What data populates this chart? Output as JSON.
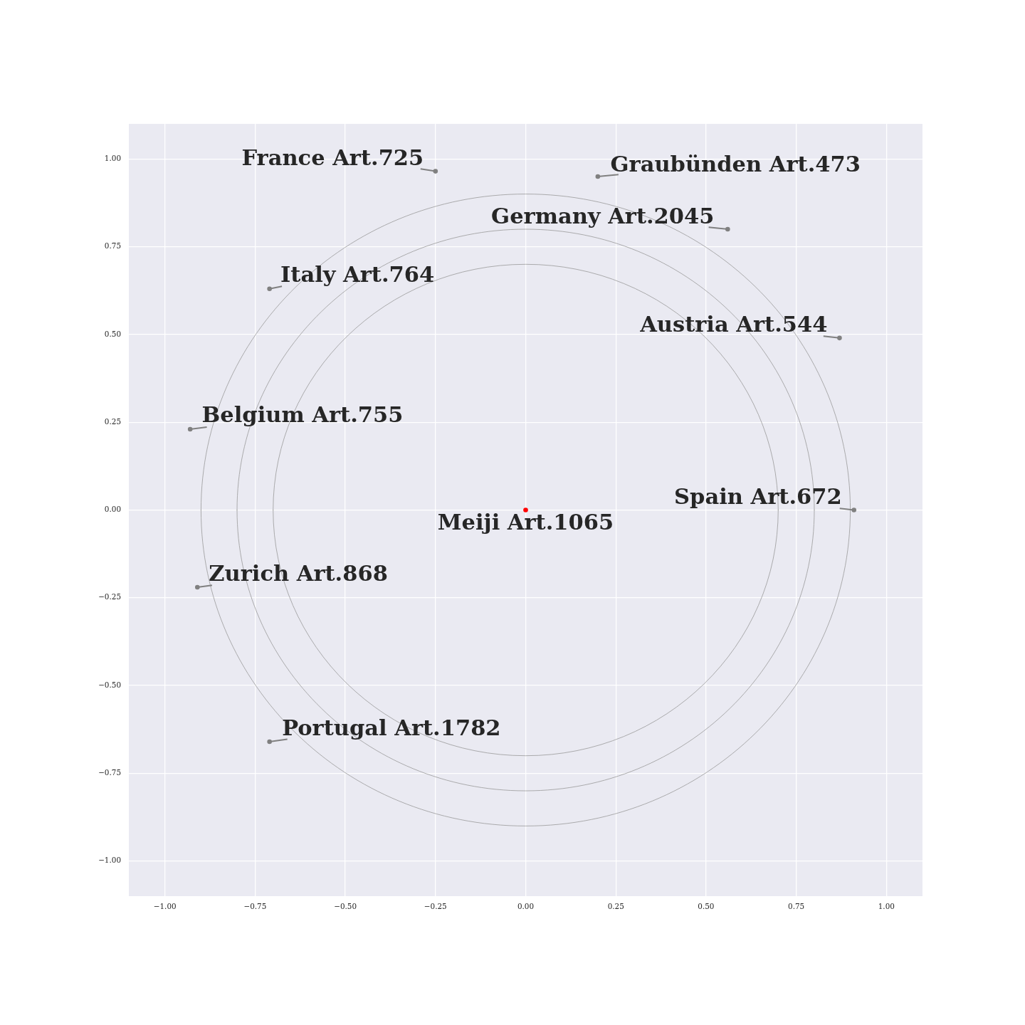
{
  "chart_data": {
    "type": "scatter",
    "xlim": [
      -1.1,
      1.1
    ],
    "ylim": [
      -1.1,
      1.1
    ],
    "xticks": [
      {
        "value": -1,
        "label": "−1.00"
      },
      {
        "value": -0.75,
        "label": "−0.75"
      },
      {
        "value": -0.5,
        "label": "−0.50"
      },
      {
        "value": -0.25,
        "label": "−0.25"
      },
      {
        "value": 0,
        "label": "0.00"
      },
      {
        "value": 0.25,
        "label": "0.25"
      },
      {
        "value": 0.5,
        "label": "0.50"
      },
      {
        "value": 0.75,
        "label": "0.75"
      },
      {
        "value": 1,
        "label": "1.00"
      }
    ],
    "yticks": [
      {
        "value": -1,
        "label": "−1.00"
      },
      {
        "value": -0.75,
        "label": "−0.75"
      },
      {
        "value": -0.5,
        "label": "−0.50"
      },
      {
        "value": -0.25,
        "label": "−0.25"
      },
      {
        "value": 0,
        "label": "0.00"
      },
      {
        "value": 0.25,
        "label": "0.25"
      },
      {
        "value": 0.5,
        "label": "0.50"
      },
      {
        "value": 0.75,
        "label": "0.75"
      },
      {
        "value": 1,
        "label": "1.00"
      }
    ],
    "grid": true,
    "series": [
      {
        "type": "scatter",
        "marker": "circle",
        "colors": [
          "#808080",
          "#808080",
          "#808080",
          "#808080",
          "#808080",
          "#808080",
          "#808080",
          "#ff0000",
          "#808080",
          "#808080"
        ],
        "x": [
          -0.25,
          0.2,
          0.56,
          -0.71,
          0.87,
          -0.93,
          0.91,
          0,
          -0.91,
          -0.71
        ],
        "values": [
          0.965,
          0.95,
          0.8,
          0.63,
          0.49,
          0.23,
          0,
          0,
          -0.22,
          -0.66
        ]
      }
    ],
    "annotations": [
      {
        "text": "France Art.725",
        "x": -0.25,
        "y": 0.965
      },
      {
        "text": "Graubünden Art.473",
        "x": 0.2,
        "y": 0.95
      },
      {
        "text": "Germany Art.2045",
        "x": 0.56,
        "y": 0.8
      },
      {
        "text": "Italy Art.764",
        "x": -0.71,
        "y": 0.63
      },
      {
        "text": "Austria Art.544",
        "x": 0.87,
        "y": 0.49
      },
      {
        "text": "Belgium Art.755",
        "x": -0.93,
        "y": 0.23
      },
      {
        "text": "Spain Art.672",
        "x": 0.91,
        "y": 0
      },
      {
        "text": "Meiji Art.1065",
        "x": 0,
        "y": 0
      },
      {
        "text": "Zurich Art.868",
        "x": -0.91,
        "y": -0.22
      },
      {
        "text": "Portugal Art.1782",
        "x": -0.71,
        "y": -0.66
      }
    ]
  }
}
